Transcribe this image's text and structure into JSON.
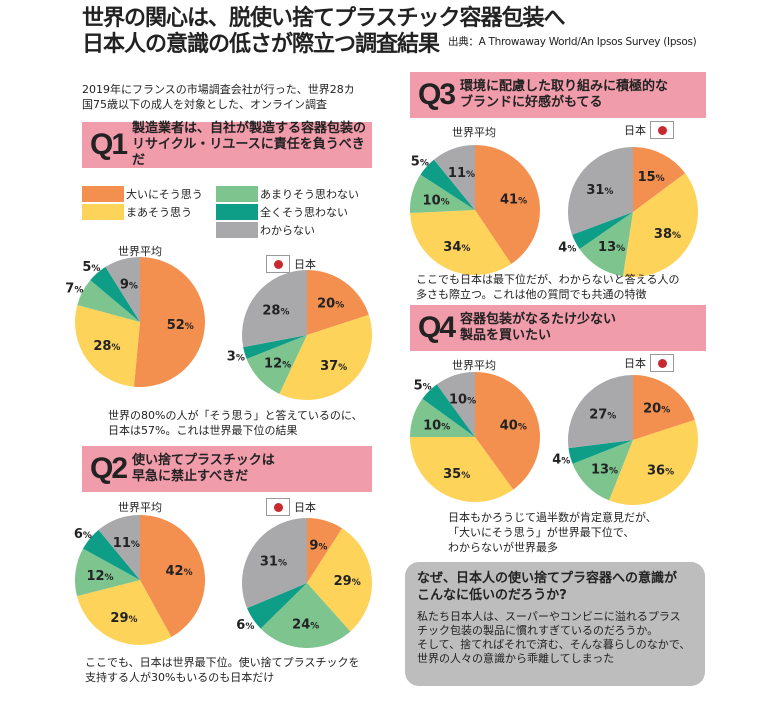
{
  "header": {
    "title_line1": "世界の関心は、脱使い捨てプラスチック容器包装へ",
    "title_line2": "日本人の意識の低さが際立つ調査結果",
    "source": "出典：A Throwaway World/An Ipsos Survey (Ipsos)"
  },
  "intro": {
    "line1": "2019年にフランスの市場調査会社が行った、世界28カ",
    "line2": "国75歳以下の成人を対象とした、オンライン調査"
  },
  "colors": {
    "header_bg": "#F19CAB",
    "flag_red": "#C62A2F",
    "callout_bg": "#BDBDBD"
  },
  "legend": [
    {
      "label": "大いにそう思う",
      "color": "#F4904F"
    },
    {
      "label": "まあそう思う",
      "color": "#FDD35A"
    },
    {
      "label": "あまりそう思わない",
      "color": "#7DC48F"
    },
    {
      "label": "全くそう思わない",
      "color": "#0E9D86"
    },
    {
      "label": "わからない",
      "color": "#A9A9AB"
    }
  ],
  "labels": {
    "world": "世界平均",
    "japan": "日本",
    "percent": "%"
  },
  "questions": [
    {
      "num": "Q1",
      "line1": "製造業者は、自社が製造する容器包装の",
      "line2": "リサイクル・リユースに責任を負うべきだ",
      "note1": "世界の80%の人が「そう思う」と答えているのに、",
      "note2": "日本は57%。これは世界最下位の結果"
    },
    {
      "num": "Q2",
      "line1": "使い捨てプラスチックは",
      "line2": "早急に禁止すべきだ",
      "note1": "ここでも、日本は世界最下位。使い捨てプラスチックを",
      "note2": "支持する人が30%もいるのも日本だけ"
    },
    {
      "num": "Q3",
      "line1": "環境に配慮した取り組みに積極的な",
      "line2": "ブランドに好感がもてる",
      "note1": "ここでも日本は最下位だが、わからないと答える人の",
      "note2": "多さも際立つ。これは他の質問でも共通の特徴"
    },
    {
      "num": "Q4",
      "line1": "容器包装がなるたけ少ない",
      "line2": "製品を買いたい",
      "note1": "日本もかろうじて過半数が肯定意見だが、",
      "note2": "「大いにそう思う」が世界最下位で、",
      "note3": "わからないが世界最多"
    }
  ],
  "callout": {
    "title1": "なぜ、日本人の使い捨てプラ容器への意識が",
    "title2": "こんなに低いのだろうか?",
    "body1": "私たち日本人は、スーパーやコンビニに溢れるプラス",
    "body2": "チック包装の製品に慣れすぎているのだろうか。",
    "body3": "そして、捨てればそれで済む、そんな暮らしのなかで、",
    "body4": "世界の人々の意識から乖離してしまった"
  },
  "chart_data": [
    {
      "type": "pie",
      "question": "Q1",
      "label": "世界平均",
      "categories": [
        "大いにそう思う",
        "まあそう思う",
        "あまりそう思わない",
        "全くそう思わない",
        "わからない"
      ],
      "values": [
        52,
        28,
        7,
        5,
        9
      ],
      "start": "12 o'clock",
      "direction": "clockwise"
    },
    {
      "type": "pie",
      "question": "Q1",
      "label": "日本",
      "categories": [
        "大いにそう思う",
        "まあそう思う",
        "あまりそう思わない",
        "全くそう思わない",
        "わからない"
      ],
      "values": [
        20,
        37,
        12,
        3,
        28
      ],
      "start": "12 o'clock",
      "direction": "clockwise"
    },
    {
      "type": "pie",
      "question": "Q2",
      "label": "世界平均",
      "categories": [
        "大いにそう思う",
        "まあそう思う",
        "あまりそう思わない",
        "全くそう思わない",
        "わからない"
      ],
      "values": [
        42,
        29,
        12,
        6,
        11
      ],
      "start": "12 o'clock",
      "direction": "clockwise"
    },
    {
      "type": "pie",
      "question": "Q2",
      "label": "日本",
      "categories": [
        "大いにそう思う",
        "まあそう思う",
        "あまりそう思わない",
        "全くそう思わない",
        "わからない"
      ],
      "values": [
        9,
        29,
        24,
        6,
        31
      ],
      "start": "12 o'clock",
      "direction": "clockwise"
    },
    {
      "type": "pie",
      "question": "Q3",
      "label": "世界平均",
      "categories": [
        "大いにそう思う",
        "まあそう思う",
        "あまりそう思わない",
        "全くそう思わない",
        "わからない"
      ],
      "values": [
        41,
        34,
        10,
        5,
        11
      ],
      "start": "12 o'clock",
      "direction": "clockwise"
    },
    {
      "type": "pie",
      "question": "Q3",
      "label": "日本",
      "categories": [
        "大いにそう思う",
        "まあそう思う",
        "あまりそう思わない",
        "全くそう思わない",
        "わからない"
      ],
      "values": [
        15,
        38,
        13,
        4,
        31
      ],
      "start": "12 o'clock",
      "direction": "clockwise"
    },
    {
      "type": "pie",
      "question": "Q4",
      "label": "世界平均",
      "categories": [
        "大いにそう思う",
        "まあそう思う",
        "あまりそう思わない",
        "全くそう思わない",
        "わからない"
      ],
      "values": [
        40,
        35,
        10,
        5,
        10
      ],
      "start": "12 o'clock",
      "direction": "clockwise"
    },
    {
      "type": "pie",
      "question": "Q4",
      "label": "日本",
      "categories": [
        "大いにそう思う",
        "まあそう思う",
        "あまりそう思わない",
        "全くそう思わない",
        "わからない"
      ],
      "values": [
        20,
        36,
        13,
        4,
        27
      ],
      "start": "12 o'clock",
      "direction": "clockwise"
    }
  ]
}
